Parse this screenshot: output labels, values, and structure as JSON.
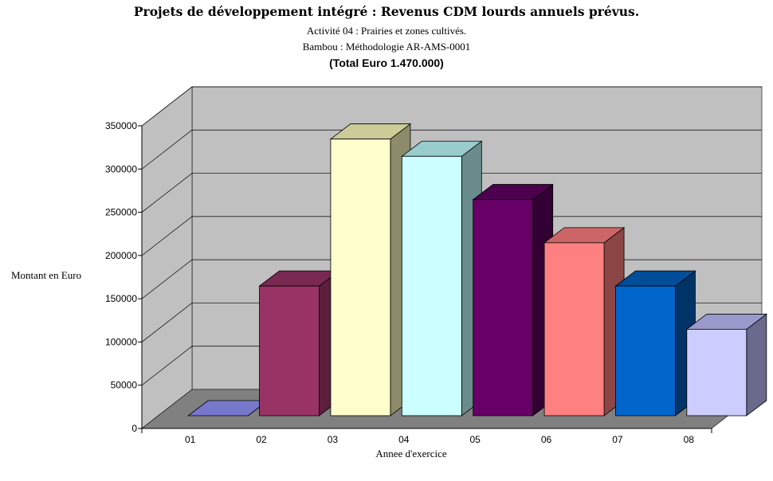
{
  "titles": {
    "main": "Projets de développement intégré : Revenus CDM lourds annuels prévus.",
    "sub1": "Activité 04 : Prairies et zones cultivés.",
    "sub2": "Bambou : Méthodologie AR-AMS-0001",
    "sub3": "(Total Euro 1.470.000)"
  },
  "chart_data": {
    "type": "bar",
    "title": "Projets de développement intégré : Revenus CDM lourds annuels prévus.",
    "xlabel": "Annee d'exercice",
    "ylabel": "Montant en Euro",
    "categories": [
      "01",
      "02",
      "03",
      "04",
      "05",
      "06",
      "07",
      "08"
    ],
    "values": [
      0,
      150000,
      320000,
      300000,
      250000,
      200000,
      150000,
      100000
    ],
    "ylim": [
      0,
      350000
    ],
    "yticks": [
      0,
      50000,
      100000,
      150000,
      200000,
      250000,
      300000,
      350000
    ],
    "grid": true,
    "legend": "none",
    "style": "3d-column",
    "colors": {
      "front": [
        "#9999ff",
        "#993366",
        "#ffffcc",
        "#ccffff",
        "#660066",
        "#ff8080",
        "#0066cc",
        "#ccccff"
      ],
      "top": [
        "#7777cc",
        "#7a2952",
        "#cccc99",
        "#99cccc",
        "#4d004d",
        "#cc6666",
        "#004d99",
        "#9999cc"
      ],
      "side": [
        "#555599",
        "#5c1f3d",
        "#8c8c6a",
        "#6a8c8c",
        "#330033",
        "#8c4646",
        "#003366",
        "#6a6a8c"
      ],
      "wall": "#c0c0c0",
      "floor": "#808080"
    }
  }
}
